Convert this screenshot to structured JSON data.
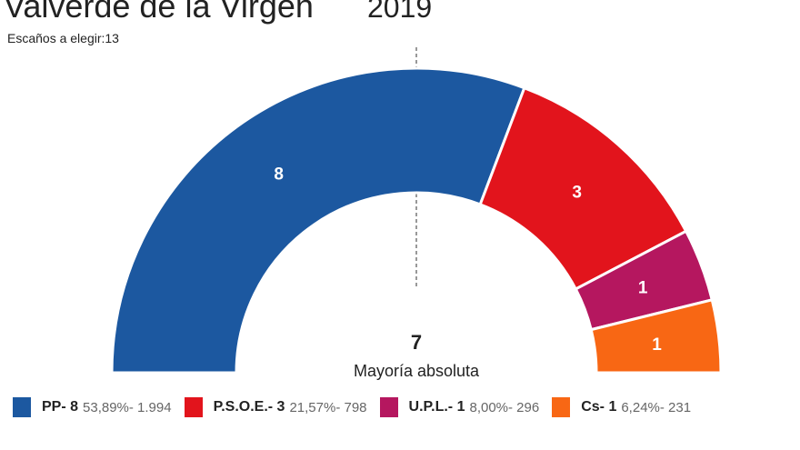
{
  "header": {
    "title": "Valverde de la Virgen",
    "year": "2019",
    "seats_label": "Escaños a elegir:13"
  },
  "chart_data": {
    "type": "pie",
    "subtype": "parliament-semicircle",
    "total_seats": 13,
    "majority": {
      "value": "7",
      "label": "Mayoría absoluta"
    },
    "series": [
      {
        "name": "PP",
        "seats": 8,
        "seats_label": "8",
        "legend_name": "PP- 8",
        "legend_detail": "53,89%- 1.994",
        "percent": 53.89,
        "votes": 1994,
        "color": "#1c58a0"
      },
      {
        "name": "P.S.O.E.",
        "seats": 3,
        "seats_label": "3",
        "legend_name": "P.S.O.E.- 3",
        "legend_detail": "21,57%- 798",
        "percent": 21.57,
        "votes": 798,
        "color": "#e2141c"
      },
      {
        "name": "U.P.L.",
        "seats": 1,
        "seats_label": "1",
        "legend_name": "U.P.L.- 1",
        "legend_detail": "8,00%- 296",
        "percent": 8.0,
        "votes": 296,
        "color": "#b5175f"
      },
      {
        "name": "Cs",
        "seats": 1,
        "seats_label": "1",
        "legend_name": "Cs- 1",
        "legend_detail": "6,24%- 231",
        "percent": 6.24,
        "votes": 231,
        "color": "#f86714"
      }
    ]
  }
}
